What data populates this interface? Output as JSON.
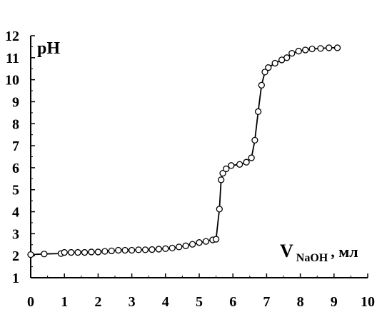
{
  "chart_data": {
    "type": "line",
    "ylabel": "pH",
    "xlabel": {
      "main": "V",
      "subscript": "NaOH",
      "unit": ", мл"
    },
    "xlim": [
      0,
      10
    ],
    "ylim": [
      1,
      12
    ],
    "x_ticks": [
      "0",
      "1",
      "2",
      "3",
      "4",
      "5",
      "6",
      "7",
      "8",
      "9",
      "10"
    ],
    "y_ticks": [
      "1",
      "2",
      "3",
      "4",
      "5",
      "6",
      "7",
      "8",
      "9",
      "10",
      "11",
      "12"
    ],
    "grid": false,
    "marker": "open-circle",
    "series": [
      {
        "x": [
          0.0,
          0.4,
          0.9,
          1.0,
          1.2,
          1.4,
          1.6,
          1.8,
          2.0,
          2.2,
          2.4,
          2.6,
          2.8,
          3.0,
          3.2,
          3.4,
          3.6,
          3.8,
          4.0,
          4.2,
          4.4,
          4.6,
          4.8,
          5.0,
          5.2,
          5.4,
          5.5,
          5.6,
          5.65,
          5.7,
          5.8,
          5.95,
          6.2,
          6.4,
          6.55,
          6.65,
          6.75,
          6.85,
          6.95,
          7.05,
          7.25,
          7.45,
          7.6,
          7.75,
          7.95,
          8.15,
          8.35,
          8.6,
          8.85,
          9.1
        ],
        "y": [
          2.05,
          2.08,
          2.1,
          2.15,
          2.15,
          2.15,
          2.15,
          2.17,
          2.17,
          2.2,
          2.22,
          2.25,
          2.25,
          2.25,
          2.27,
          2.27,
          2.28,
          2.3,
          2.32,
          2.35,
          2.4,
          2.45,
          2.52,
          2.6,
          2.65,
          2.72,
          2.75,
          4.12,
          5.45,
          5.75,
          5.95,
          6.1,
          6.15,
          6.25,
          6.45,
          7.25,
          8.55,
          9.75,
          10.35,
          10.55,
          10.75,
          10.9,
          11.0,
          11.2,
          11.3,
          11.35,
          11.4,
          11.42,
          11.45,
          11.45
        ]
      }
    ]
  }
}
